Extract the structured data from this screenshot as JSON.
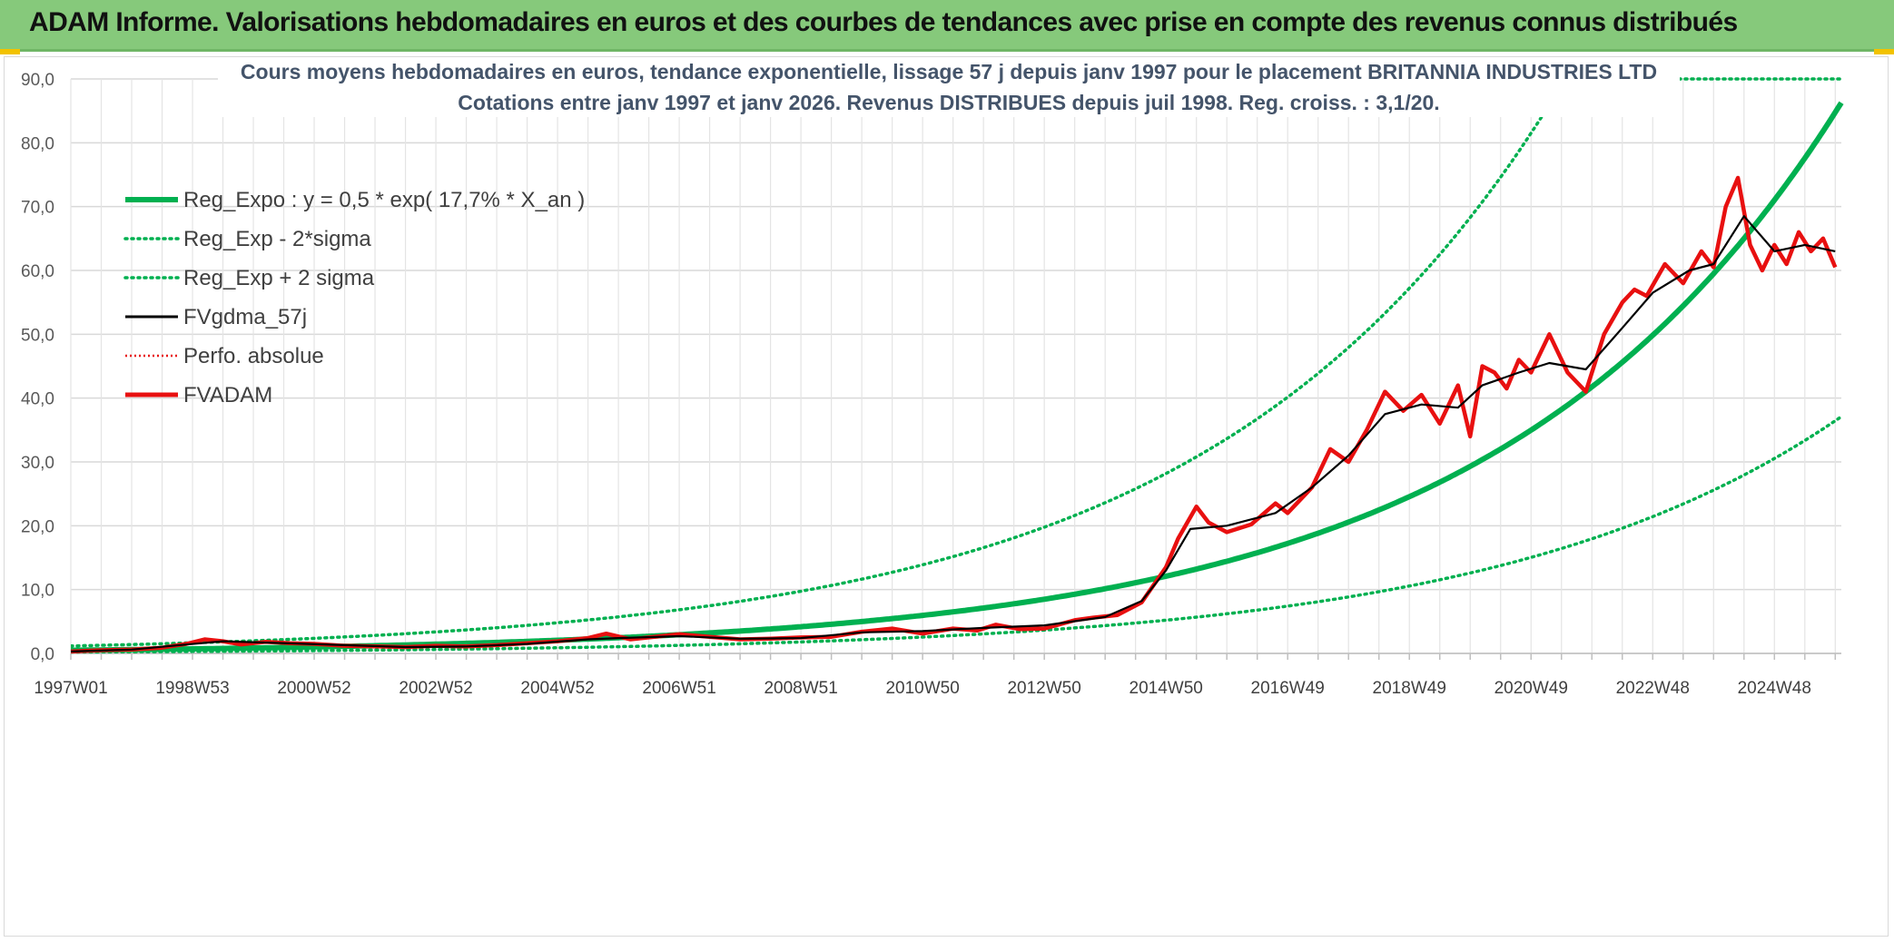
{
  "header": {
    "title": "ADAM Informe. Valorisations hebdomadaires en euros et des courbes de tendances avec prise en compte des revenus connus distribués"
  },
  "colors": {
    "header_bg": "#86c97b",
    "reg_expo": "#00b050",
    "fvgdma": "#000000",
    "fvadam": "#e81010",
    "perfo": "#e81010",
    "grid": "#d9d9d9",
    "text": "#44546a"
  },
  "chart_data": {
    "type": "line",
    "title_line1": "Cours moyens hebdomadaires en euros, tendance exponentielle, lissage 57 j depuis janv 1997 pour le placement BRITANNIA INDUSTRIES LTD",
    "title_line2": "Cotations entre janv 1997 et janv 2026. Revenus DISTRIBUES depuis juil 1998. Reg. croiss. : 3,1/20.",
    "ylim": [
      0,
      90
    ],
    "yticks": [
      "0,0",
      "10,0",
      "20,0",
      "30,0",
      "40,0",
      "50,0",
      "60,0",
      "70,0",
      "80,0",
      "90,0"
    ],
    "xlim": [
      1997.0,
      2026.1
    ],
    "xticks": [
      {
        "label": "1997W01",
        "x": 1997.0
      },
      {
        "label": "1998W53",
        "x": 1999.0
      },
      {
        "label": "2000W52",
        "x": 2001.0
      },
      {
        "label": "2002W52",
        "x": 2003.0
      },
      {
        "label": "2004W52",
        "x": 2005.0
      },
      {
        "label": "2006W51",
        "x": 2007.0
      },
      {
        "label": "2008W51",
        "x": 2009.0
      },
      {
        "label": "2010W50",
        "x": 2011.0
      },
      {
        "label": "2012W50",
        "x": 2013.0
      },
      {
        "label": "2014W50",
        "x": 2015.0
      },
      {
        "label": "2016W49",
        "x": 2017.0
      },
      {
        "label": "2018W49",
        "x": 2019.0
      },
      {
        "label": "2020W49",
        "x": 2021.0
      },
      {
        "label": "2022W48",
        "x": 2023.0
      },
      {
        "label": "2024W48",
        "x": 2025.0
      }
    ],
    "regression": {
      "a": 0.5,
      "rate": 0.177,
      "start": 1997.0,
      "sigma_factor_low": 0.43,
      "sigma_factor_high": 2.33
    },
    "legend": [
      {
        "key": "reg_expo",
        "label": "Reg_Expo : y = 0,5 * exp( 17,7% *  X_an )",
        "style": "thick-green"
      },
      {
        "key": "reg_low",
        "label": "Reg_Exp - 2*sigma",
        "style": "dotted-green"
      },
      {
        "key": "reg_high",
        "label": "Reg_Exp + 2 sigma",
        "style": "dotted-green"
      },
      {
        "key": "fvgdma",
        "label": "FVgdma_57j",
        "style": "black"
      },
      {
        "key": "perfo",
        "label": "Perfo. absolue",
        "style": "dotted-red"
      },
      {
        "key": "fvadam",
        "label": "FVADAM",
        "style": "thick-red"
      }
    ],
    "series": [
      {
        "name": "FVADAM",
        "x": [
          1997.0,
          1997.5,
          1998.0,
          1998.5,
          1998.9,
          1999.2,
          1999.5,
          1999.8,
          2000.2,
          2000.6,
          2001.0,
          2001.5,
          2002.0,
          2002.5,
          2003.0,
          2003.5,
          2004.0,
          2004.5,
          2005.0,
          2005.5,
          2005.8,
          2006.2,
          2006.5,
          2007.0,
          2007.5,
          2008.0,
          2008.5,
          2009.0,
          2009.5,
          2010.0,
          2010.5,
          2011.0,
          2011.5,
          2011.9,
          2012.2,
          2012.6,
          2013.0,
          2013.5,
          2013.8,
          2014.2,
          2014.6,
          2015.0,
          2015.2,
          2015.5,
          2015.7,
          2016.0,
          2016.4,
          2016.8,
          2017.0,
          2017.4,
          2017.7,
          2018.0,
          2018.3,
          2018.6,
          2018.9,
          2019.2,
          2019.5,
          2019.8,
          2020.0,
          2020.2,
          2020.4,
          2020.6,
          2020.8,
          2021.0,
          2021.3,
          2021.6,
          2021.9,
          2022.2,
          2022.5,
          2022.7,
          2022.9,
          2023.2,
          2023.5,
          2023.8,
          2024.0,
          2024.2,
          2024.4,
          2024.6,
          2024.8,
          2025.0,
          2025.2,
          2025.4,
          2025.6,
          2025.8,
          2026.0
        ],
        "values": [
          0.3,
          0.5,
          0.6,
          0.9,
          1.5,
          2.2,
          1.9,
          1.4,
          1.8,
          1.6,
          1.5,
          1.2,
          1.1,
          1.0,
          1.2,
          1.1,
          1.3,
          1.6,
          1.9,
          2.4,
          3.1,
          2.2,
          2.5,
          3.0,
          2.6,
          2.2,
          2.3,
          2.5,
          2.6,
          3.4,
          3.9,
          3.1,
          3.9,
          3.6,
          4.5,
          3.8,
          3.9,
          5.2,
          5.6,
          6.0,
          8.0,
          13.5,
          18.0,
          23.0,
          20.5,
          19.0,
          20.2,
          23.5,
          22.0,
          26.0,
          32.0,
          30.0,
          35.0,
          41.0,
          38.0,
          40.5,
          36.0,
          42.0,
          34.0,
          45.0,
          44.0,
          41.5,
          46.0,
          44.0,
          50.0,
          44.0,
          41.0,
          50.0,
          55.0,
          57.0,
          56.0,
          61.0,
          58.0,
          63.0,
          60.5,
          70.0,
          74.5,
          64.0,
          60.0,
          64.0,
          61.0,
          66.0,
          63.0,
          65.0,
          60.5
        ]
      },
      {
        "name": "FVgdma_57j",
        "x": [
          1997.0,
          1998.0,
          1998.9,
          1999.5,
          2000.5,
          2001.5,
          2002.5,
          2003.5,
          2004.5,
          2005.5,
          2006.0,
          2007.0,
          2008.0,
          2009.0,
          2010.0,
          2011.0,
          2012.0,
          2013.0,
          2014.0,
          2014.6,
          2015.0,
          2015.4,
          2016.0,
          2016.8,
          2017.4,
          2018.0,
          2018.6,
          2019.2,
          2019.8,
          2020.2,
          2020.8,
          2021.3,
          2021.9,
          2022.5,
          2023.0,
          2023.6,
          2024.0,
          2024.5,
          2025.0,
          2025.5,
          2026.0
        ],
        "values": [
          0.3,
          0.6,
          1.4,
          1.9,
          1.6,
          1.3,
          1.0,
          1.1,
          1.5,
          2.2,
          2.4,
          2.7,
          2.3,
          2.4,
          3.3,
          3.5,
          4.0,
          4.4,
          5.7,
          8.2,
          13.0,
          19.5,
          20.0,
          22.0,
          26.0,
          31.0,
          37.5,
          39.0,
          38.5,
          42.0,
          44.0,
          45.5,
          44.5,
          51.0,
          56.5,
          60.0,
          61.0,
          68.5,
          63.0,
          64.0,
          63.0
        ]
      }
    ]
  }
}
